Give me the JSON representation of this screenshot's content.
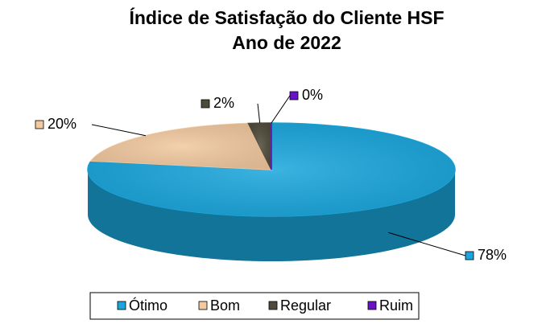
{
  "chart_data": {
    "type": "pie3d",
    "title": "Índice de Satisfação do Cliente HSF",
    "subtitle": "Ano de 2022",
    "categories": [
      "Ótimo",
      "Bom",
      "Regular",
      "Ruim"
    ],
    "values": [
      78,
      20,
      2,
      0
    ],
    "value_labels": [
      "78%",
      "20%",
      "2%",
      "0%"
    ],
    "colors": [
      "#1aa6dc",
      "#f2c9a0",
      "#4f4b3a",
      "#6a12c8"
    ],
    "legend": "bottom"
  }
}
